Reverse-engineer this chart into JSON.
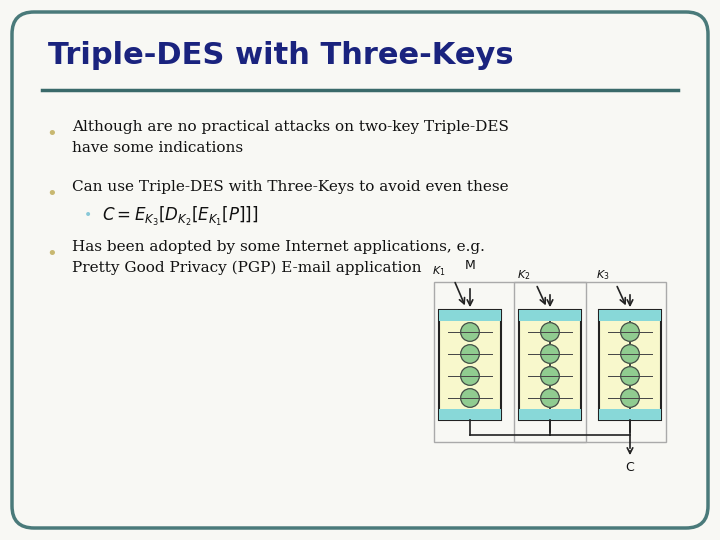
{
  "title": "Triple-DES with Three-Keys",
  "title_color": "#1a237e",
  "title_fontsize": 22,
  "bg_color": "#f8f8f4",
  "border_color": "#4a7a7a",
  "line_color": "#3a6a6a",
  "bullet_color": "#c8b870",
  "bullet_color2": "#88c8d8",
  "text_color": "#111111",
  "bullet1": "Although are no practical attacks on two-key Triple-DES\nhave some indications",
  "bullet2": "Can use Triple-DES with Three-Keys to avoid even these",
  "bullet4": "Has been adopted by some Internet applications, e.g.\nPretty Good Privacy (PGP) E-mail application",
  "box_fill": "#f8f8cc",
  "box_edge": "#222222",
  "bar_fill": "#88d8d8",
  "arrow_color": "#222222",
  "text_fontsize": 11,
  "formula_fontsize": 12
}
